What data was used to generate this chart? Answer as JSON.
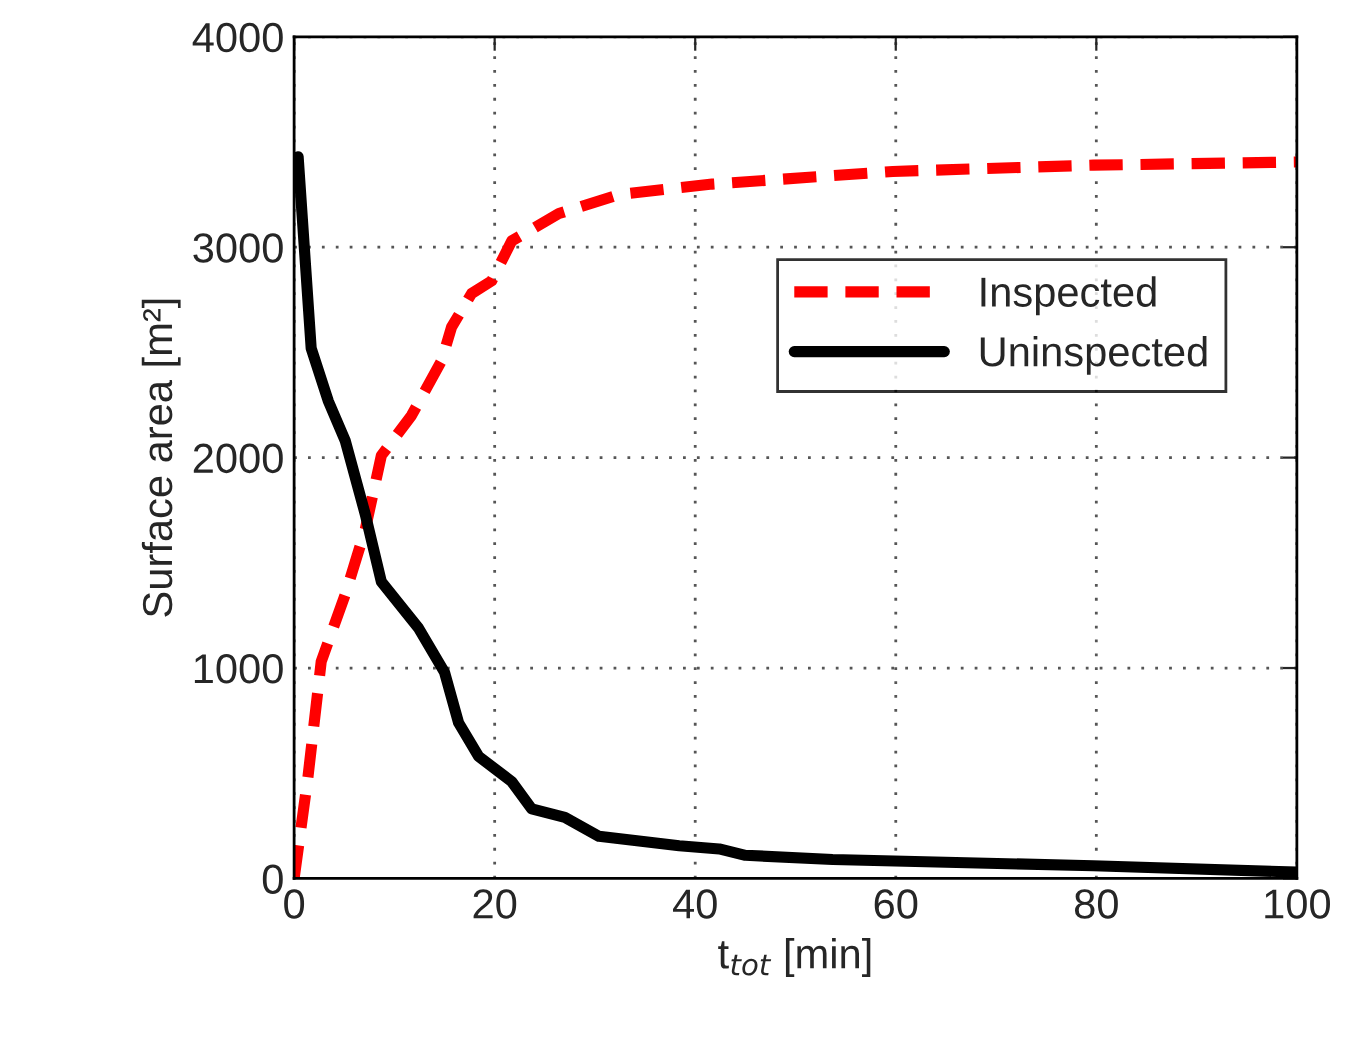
{
  "chart_data": {
    "type": "line",
    "xlabel": "t$_{tot}$ [min]",
    "ylabel": "Surface area [m²]",
    "xlim": [
      0,
      100
    ],
    "xticks": [
      0,
      20,
      40,
      60,
      80,
      100
    ],
    "ylim": [
      0,
      4000
    ],
    "yticks": [
      0,
      1000,
      2000,
      3000,
      4000
    ],
    "grid": true,
    "legend": "top right",
    "series": [
      {
        "name": "Inspected",
        "color": "#ff0000",
        "line_style": "dashed",
        "x": [
          0,
          1.4,
          2.7,
          5.1,
          7.1,
          8.7,
          11.7,
          14.7,
          15.7,
          17.7,
          19.7,
          21.7,
          26.4,
          32.4,
          41.7,
          59.7,
          79.7,
          100
        ],
        "values": [
          0,
          490,
          1030,
          1350,
          1660,
          2010,
          2200,
          2460,
          2620,
          2780,
          2840,
          3030,
          3160,
          3250,
          3300,
          3360,
          3390,
          3405
        ]
      },
      {
        "name": "Uninspected",
        "color": "#000000",
        "line_style": "solid",
        "x": [
          0.4,
          1.7,
          3.4,
          5.1,
          7.1,
          8.7,
          12.4,
          15,
          16.4,
          18.4,
          21.7,
          23.7,
          27,
          30.4,
          38.4,
          42.4,
          45,
          53.7,
          79.7,
          100
        ],
        "values": [
          3430,
          2520,
          2270,
          2080,
          1730,
          1410,
          1190,
          980,
          740,
          580,
          460,
          330,
          290,
          200,
          155,
          140,
          110,
          90,
          60,
          30
        ]
      }
    ]
  }
}
